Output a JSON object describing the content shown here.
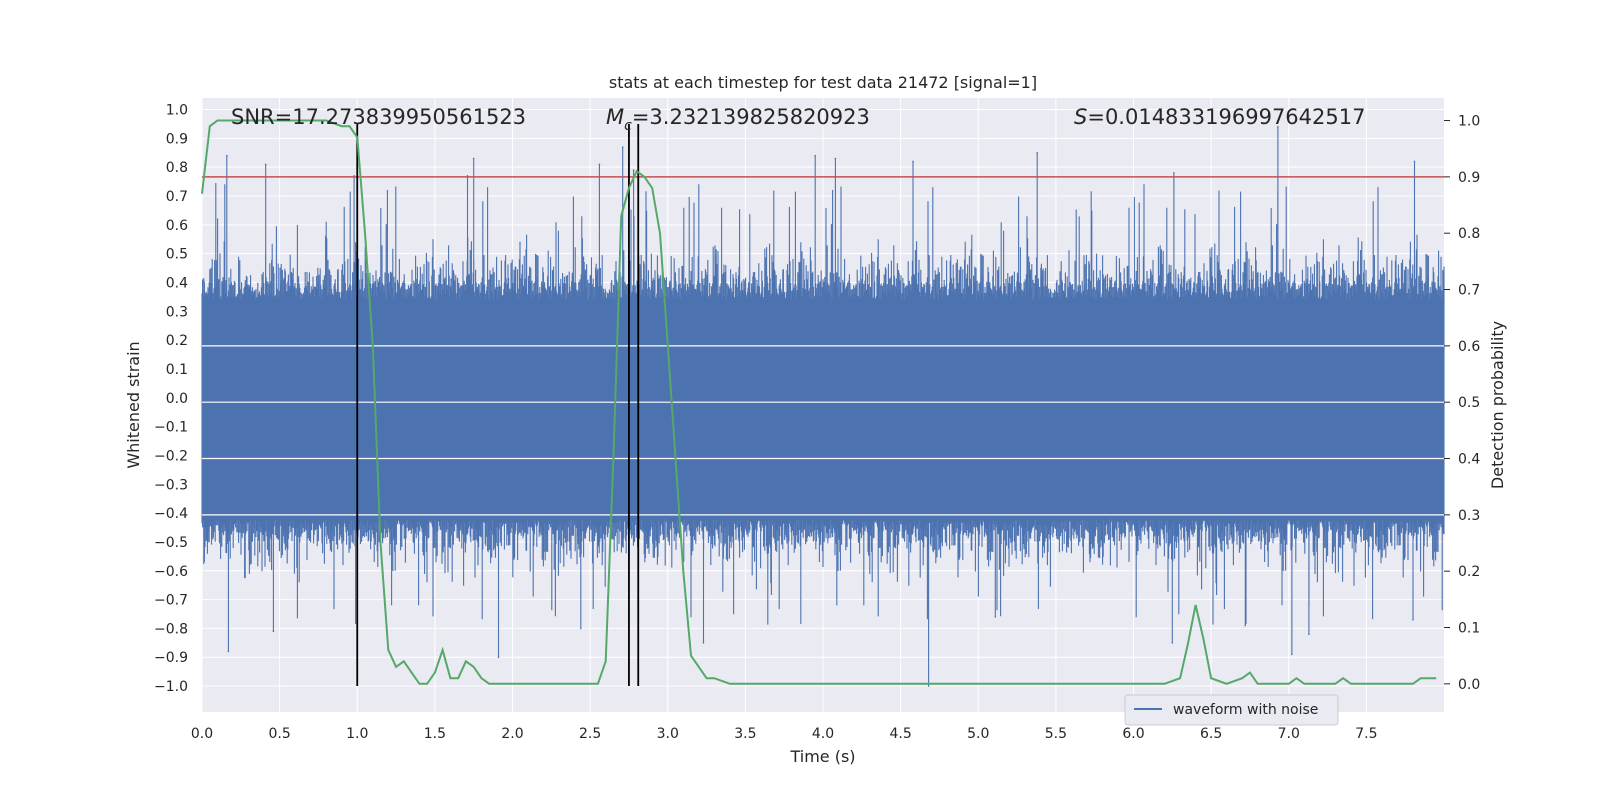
{
  "chart_data": {
    "type": "line",
    "title": "stats at each timestep for test data 21472 [signal=1]",
    "xlabel": "Time (s)",
    "ylabel": "Whitened strain",
    "y2label": "Detection probability",
    "xlim": [
      0.0,
      8.0
    ],
    "ylim": [
      -1.09,
      1.04
    ],
    "y2lim": [
      -0.05,
      1.04
    ],
    "x_ticks": [
      0.0,
      0.5,
      1.0,
      1.5,
      2.0,
      2.5,
      3.0,
      3.5,
      4.0,
      4.5,
      5.0,
      5.5,
      6.0,
      6.5,
      7.0,
      7.5
    ],
    "x_tick_labels": [
      "0.0",
      "0.5",
      "1.0",
      "1.5",
      "2.0",
      "2.5",
      "3.0",
      "3.5",
      "4.0",
      "4.5",
      "5.0",
      "5.5",
      "6.0",
      "6.5",
      "7.0",
      "7.5"
    ],
    "y_ticks": [
      1.0,
      0.9,
      0.8,
      0.7,
      0.6,
      0.5,
      0.4,
      0.3,
      0.2,
      0.1,
      0.0,
      -0.1,
      -0.2,
      -0.3,
      -0.4,
      -0.5,
      -0.6,
      -0.7,
      -0.8,
      -0.9,
      -1.0
    ],
    "y_tick_labels": [
      "1.0",
      "0.9",
      "0.8",
      "0.7",
      "0.6",
      "0.5",
      "0.4",
      "0.3",
      "0.2",
      "0.1",
      "0.0",
      "−0.1",
      "−0.2",
      "−0.3",
      "−0.4",
      "−0.5",
      "−0.6",
      "−0.7",
      "−0.8",
      "−0.9",
      "−1.0"
    ],
    "y2_ticks": [
      1.0,
      0.9,
      0.8,
      0.7,
      0.6,
      0.5,
      0.4,
      0.3,
      0.2,
      0.1,
      0.0
    ],
    "y2_tick_labels": [
      "1.0",
      "0.9",
      "0.8",
      "0.7",
      "0.6",
      "0.5",
      "0.4",
      "0.3",
      "0.2",
      "0.1",
      "0.0"
    ],
    "grid": true,
    "legend": {
      "placement": "lower-right",
      "entries": [
        "waveform with noise"
      ]
    },
    "annotations": {
      "snr": "SNR=17.273839950561523",
      "mc_symbol": "M",
      "mc_sub": "c",
      "mc_value": "=3.232139825820923",
      "s_symbol": "S",
      "s_value": "=0.014833196997642517"
    },
    "threshold": {
      "axis": "right",
      "value": 0.9,
      "color": "#c44e52"
    },
    "vertical_lines": [
      {
        "x": 1.0,
        "ymin": -1.0,
        "ymax": 0.95
      },
      {
        "x": 2.75,
        "ymin": -1.0,
        "ymax": 0.95
      },
      {
        "x": 2.81,
        "ymin": -1.0,
        "ymax": 0.95
      }
    ],
    "series": [
      {
        "name": "waveform with noise",
        "axis": "left",
        "color": "#4c72b0",
        "style": "dense noise",
        "envelope_peaks": [
          [
            0.16,
            0.84
          ],
          [
            0.41,
            0.81
          ],
          [
            0.98,
            0.77
          ],
          [
            1.71,
            0.77
          ],
          [
            1.75,
            0.83
          ],
          [
            2.56,
            0.81
          ],
          [
            2.71,
            0.87
          ],
          [
            2.78,
            0.79
          ],
          [
            3.95,
            0.84
          ],
          [
            4.08,
            0.83
          ],
          [
            4.58,
            0.82
          ],
          [
            5.38,
            0.85
          ],
          [
            6.26,
            0.78
          ],
          [
            6.93,
            0.94
          ],
          [
            7.81,
            0.82
          ]
        ],
        "envelope_troughs": [
          [
            0.17,
            -0.88
          ],
          [
            0.46,
            -0.81
          ],
          [
            1.91,
            -0.9
          ],
          [
            2.44,
            -0.8
          ],
          [
            3.23,
            -0.85
          ],
          [
            4.68,
            -1.0
          ],
          [
            5.11,
            -0.76
          ],
          [
            6.25,
            -0.85
          ],
          [
            6.72,
            -0.79
          ],
          [
            7.02,
            -0.89
          ],
          [
            7.13,
            -0.82
          ],
          [
            7.8,
            -0.77
          ]
        ]
      },
      {
        "name": "",
        "axis": "right",
        "color": "#55a868",
        "x": [
          0.0,
          0.05,
          0.1,
          0.15,
          0.3,
          0.5,
          0.7,
          0.8,
          0.9,
          0.95,
          1.0,
          1.05,
          1.1,
          1.15,
          1.2,
          1.25,
          1.3,
          1.35,
          1.4,
          1.45,
          1.5,
          1.55,
          1.6,
          1.65,
          1.7,
          1.75,
          1.8,
          1.85,
          1.9,
          2.0,
          2.1,
          2.2,
          2.3,
          2.4,
          2.5,
          2.55,
          2.6,
          2.65,
          2.7,
          2.75,
          2.8,
          2.85,
          2.9,
          2.95,
          3.0,
          3.1,
          3.15,
          3.2,
          3.25,
          3.3,
          3.4,
          3.6,
          3.8,
          4.0,
          4.2,
          4.5,
          4.8,
          5.0,
          5.2,
          5.5,
          5.8,
          6.0,
          6.2,
          6.3,
          6.35,
          6.4,
          6.45,
          6.5,
          6.6,
          6.7,
          6.75,
          6.8,
          6.9,
          7.0,
          7.05,
          7.1,
          7.2,
          7.3,
          7.35,
          7.4,
          7.6,
          7.8,
          7.85,
          7.95
        ],
        "y": [
          0.87,
          0.99,
          1.0,
          1.0,
          1.0,
          1.0,
          1.0,
          1.0,
          0.99,
          0.99,
          0.97,
          0.8,
          0.6,
          0.25,
          0.06,
          0.03,
          0.04,
          0.02,
          0.0,
          0.0,
          0.02,
          0.06,
          0.01,
          0.01,
          0.04,
          0.03,
          0.01,
          0.0,
          0.0,
          0.0,
          0.0,
          0.0,
          0.0,
          0.0,
          0.0,
          0.0,
          0.04,
          0.4,
          0.83,
          0.88,
          0.91,
          0.9,
          0.88,
          0.8,
          0.6,
          0.2,
          0.05,
          0.03,
          0.01,
          0.01,
          0.0,
          0.0,
          0.0,
          0.0,
          0.0,
          0.0,
          0.0,
          0.0,
          0.0,
          0.0,
          0.0,
          0.0,
          0.0,
          0.01,
          0.07,
          0.14,
          0.08,
          0.01,
          0.0,
          0.01,
          0.02,
          0.0,
          0.0,
          0.0,
          0.01,
          0.0,
          0.0,
          0.0,
          0.01,
          0.0,
          0.0,
          0.0,
          0.01,
          0.01
        ]
      }
    ]
  }
}
